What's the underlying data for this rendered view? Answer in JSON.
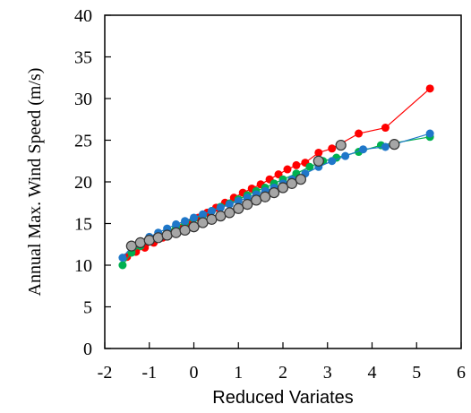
{
  "chart_data": {
    "type": "scatter",
    "title": "",
    "xlabel": "Reduced Variates",
    "ylabel": "Annual Max. Wind Speed (m/s)",
    "xlim": [
      -2,
      6
    ],
    "ylim": [
      0,
      40
    ],
    "xticks": [
      -2,
      -1,
      0,
      1,
      2,
      3,
      4,
      5,
      6
    ],
    "yticks": [
      0,
      5,
      10,
      15,
      20,
      25,
      30,
      35,
      40
    ],
    "grid": false,
    "legend": "none",
    "series": [
      {
        "color": "#ff0000",
        "marker": "circle",
        "connected": true,
        "points": [
          [
            -1.5,
            11.0
          ],
          [
            -1.3,
            11.6
          ],
          [
            -1.1,
            12.1
          ],
          [
            -0.9,
            12.7
          ],
          [
            -0.7,
            13.3
          ],
          [
            -0.5,
            13.9
          ],
          [
            -0.3,
            14.5
          ],
          [
            -0.1,
            15.1
          ],
          [
            0.1,
            15.7
          ],
          [
            0.3,
            16.3
          ],
          [
            0.5,
            16.9
          ],
          [
            0.7,
            17.5
          ],
          [
            0.9,
            18.1
          ],
          [
            1.1,
            18.7
          ],
          [
            1.3,
            19.2
          ],
          [
            1.5,
            19.7
          ],
          [
            1.7,
            20.3
          ],
          [
            1.9,
            20.9
          ],
          [
            2.1,
            21.5
          ],
          [
            2.3,
            22.0
          ],
          [
            2.5,
            22.3
          ],
          [
            2.8,
            23.5
          ],
          [
            3.1,
            24.0
          ],
          [
            3.7,
            25.8
          ],
          [
            4.3,
            26.5
          ],
          [
            5.3,
            31.2
          ]
        ]
      },
      {
        "color": "#00b050",
        "marker": "circle",
        "connected": true,
        "points": [
          [
            -1.6,
            10.0
          ],
          [
            -1.4,
            11.5
          ],
          [
            -1.2,
            12.3
          ],
          [
            -1.0,
            13.0
          ],
          [
            -0.8,
            13.6
          ],
          [
            -0.6,
            14.1
          ],
          [
            -0.4,
            14.6
          ],
          [
            -0.2,
            15.1
          ],
          [
            0.0,
            15.6
          ],
          [
            0.2,
            16.0
          ],
          [
            0.4,
            16.5
          ],
          [
            0.6,
            17.0
          ],
          [
            0.8,
            17.4
          ],
          [
            1.0,
            17.9
          ],
          [
            1.2,
            18.4
          ],
          [
            1.4,
            18.9
          ],
          [
            1.6,
            19.3
          ],
          [
            1.8,
            19.8
          ],
          [
            2.0,
            20.3
          ],
          [
            2.3,
            21.0
          ],
          [
            2.6,
            21.8
          ],
          [
            2.9,
            22.5
          ],
          [
            3.2,
            22.9
          ],
          [
            3.7,
            23.6
          ],
          [
            4.2,
            24.4
          ],
          [
            5.3,
            25.4
          ]
        ]
      },
      {
        "color": "#1f77c9",
        "marker": "circle",
        "connected": true,
        "points": [
          [
            -1.6,
            10.9
          ],
          [
            -1.4,
            12.2
          ],
          [
            -1.2,
            12.8
          ],
          [
            -1.0,
            13.4
          ],
          [
            -0.8,
            13.9
          ],
          [
            -0.6,
            14.4
          ],
          [
            -0.4,
            14.9
          ],
          [
            -0.2,
            15.3
          ],
          [
            0.0,
            15.7
          ],
          [
            0.2,
            16.1
          ],
          [
            0.4,
            16.5
          ],
          [
            0.6,
            16.9
          ],
          [
            0.8,
            17.3
          ],
          [
            1.0,
            17.7
          ],
          [
            1.2,
            18.1
          ],
          [
            1.4,
            18.5
          ],
          [
            1.6,
            18.9
          ],
          [
            1.8,
            19.3
          ],
          [
            2.0,
            19.8
          ],
          [
            2.2,
            20.3
          ],
          [
            2.5,
            21.0
          ],
          [
            2.8,
            21.8
          ],
          [
            3.1,
            22.5
          ],
          [
            3.4,
            23.1
          ],
          [
            3.8,
            23.9
          ],
          [
            4.3,
            24.2
          ],
          [
            5.3,
            25.8
          ]
        ]
      },
      {
        "color": "#a6a6a6",
        "marker": "circle-outlined",
        "connected": false,
        "points": [
          [
            -1.4,
            12.3
          ],
          [
            -1.2,
            12.7
          ],
          [
            -1.0,
            13.0
          ],
          [
            -0.8,
            13.3
          ],
          [
            -0.6,
            13.6
          ],
          [
            -0.4,
            13.9
          ],
          [
            -0.2,
            14.2
          ],
          [
            0.0,
            14.6
          ],
          [
            0.2,
            15.1
          ],
          [
            0.4,
            15.5
          ],
          [
            0.6,
            15.9
          ],
          [
            0.8,
            16.3
          ],
          [
            1.0,
            16.8
          ],
          [
            1.2,
            17.3
          ],
          [
            1.4,
            17.8
          ],
          [
            1.6,
            18.2
          ],
          [
            1.8,
            18.7
          ],
          [
            2.0,
            19.3
          ],
          [
            2.2,
            19.8
          ],
          [
            2.4,
            20.3
          ],
          [
            2.8,
            22.5
          ],
          [
            3.3,
            24.4
          ],
          [
            4.5,
            24.5
          ]
        ]
      }
    ]
  }
}
